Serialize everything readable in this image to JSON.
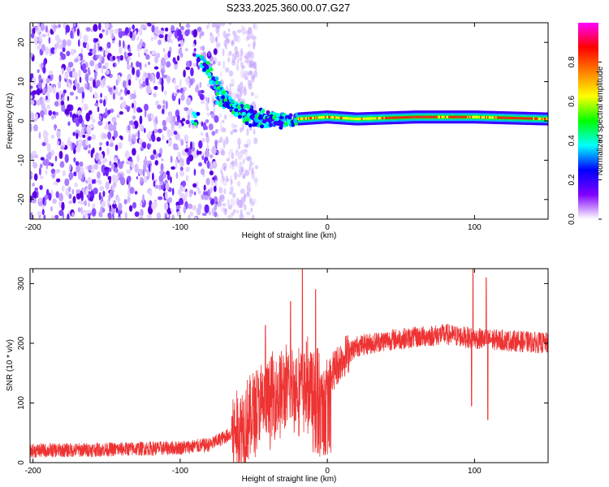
{
  "title": "S233.2025.360.00.07.G27",
  "chart_data": [
    {
      "type": "heatmap",
      "name": "spectrogram",
      "xlabel": "Height of straight line (km)",
      "ylabel": "Frequency (Hz)",
      "xlim": [
        -202,
        150
      ],
      "ylim": [
        -25,
        25
      ],
      "x_ticks": [
        -200,
        -100,
        0,
        100
      ],
      "y_ticks": [
        -20,
        -10,
        0,
        10,
        20
      ],
      "noise_region_x": [
        -202,
        -60
      ],
      "signal_ridge": [
        {
          "x": -88,
          "y": 16
        },
        {
          "x": -80,
          "y": 12
        },
        {
          "x": -72,
          "y": 7
        },
        {
          "x": -62,
          "y": 3
        },
        {
          "x": -50,
          "y": 0
        },
        {
          "x": -40,
          "y": 0
        },
        {
          "x": -20,
          "y": 0.5
        },
        {
          "x": 0,
          "y": 1
        },
        {
          "x": 20,
          "y": 0.5
        },
        {
          "x": 60,
          "y": 1
        },
        {
          "x": 100,
          "y": 1
        },
        {
          "x": 150,
          "y": 0.5
        }
      ],
      "colorbar": {
        "label": "Normalized spectral amplitude",
        "range": [
          0,
          1
        ],
        "ticks": [
          "0.0",
          "0.2",
          "0.4",
          "0.6",
          "0.8"
        ],
        "colors": [
          "#ffffff",
          "#8000ff",
          "#0000ff",
          "#00ffff",
          "#00ff00",
          "#ffff00",
          "#ff8000",
          "#ff0000",
          "#ff00ff"
        ]
      }
    },
    {
      "type": "line",
      "name": "snr",
      "xlabel": "Height of straight line (km)",
      "ylabel": "SNR (10 * v/v)",
      "xlim": [
        -202,
        150
      ],
      "ylim": [
        0,
        325
      ],
      "x_ticks": [
        -200,
        -100,
        0,
        100
      ],
      "y_ticks": [
        0,
        100,
        200,
        300
      ],
      "color": "#ee3333",
      "trend": [
        {
          "x": -202,
          "y": 20
        },
        {
          "x": -150,
          "y": 22
        },
        {
          "x": -100,
          "y": 25
        },
        {
          "x": -80,
          "y": 30
        },
        {
          "x": -60,
          "y": 55
        },
        {
          "x": -45,
          "y": 95
        },
        {
          "x": -30,
          "y": 120
        },
        {
          "x": -15,
          "y": 130
        },
        {
          "x": -5,
          "y": 120
        },
        {
          "x": 0,
          "y": 140
        },
        {
          "x": 10,
          "y": 175
        },
        {
          "x": 20,
          "y": 195
        },
        {
          "x": 40,
          "y": 205
        },
        {
          "x": 60,
          "y": 210
        },
        {
          "x": 80,
          "y": 215
        },
        {
          "x": 100,
          "y": 208
        },
        {
          "x": 120,
          "y": 205
        },
        {
          "x": 150,
          "y": 200
        }
      ],
      "spikes": [
        {
          "x": -42,
          "y": 230
        },
        {
          "x": -25,
          "y": 270
        },
        {
          "x": -17,
          "y": 330
        },
        {
          "x": -8,
          "y": 290
        },
        {
          "x": 99,
          "y": 325
        },
        {
          "x": 108,
          "y": 310
        },
        {
          "x": 109,
          "y": 72
        },
        {
          "x": 98,
          "y": 95
        }
      ]
    }
  ]
}
